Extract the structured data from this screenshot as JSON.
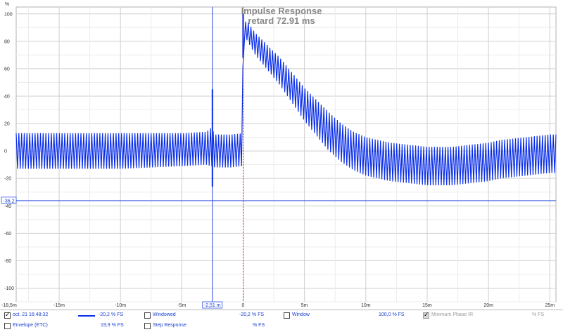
{
  "chart_data": {
    "type": "line",
    "title": "Impulse Response",
    "subtitle": "retard 72.91 ms",
    "ylabel": "%",
    "xlim": [
      -18.5,
      25.5
    ],
    "ylim": [
      -110,
      105
    ],
    "y_ticks": [
      100,
      80,
      60,
      40,
      20,
      0,
      -20,
      -40,
      -60,
      -80,
      -100
    ],
    "x_ticks": [
      -15,
      -10,
      -5,
      0,
      5,
      10,
      15,
      20,
      25
    ],
    "x_tick_labels": [
      "-15m",
      "-10m",
      "-5m",
      "0",
      "5m",
      "10m",
      "15m",
      "20m",
      "25m"
    ],
    "x_start_label": "-18,5m",
    "grid": true,
    "series": [
      {
        "name": "oct. 21 16:48:32",
        "color": "#0a2ee8",
        "envelope_x": [
          -18.5,
          -15,
          -10,
          -5,
          -3.0,
          -2.6,
          -2.3,
          -1.0,
          -0.05,
          0.0,
          0.3,
          1.0,
          2.0,
          3.0,
          4.0,
          5.0,
          6.0,
          7.0,
          8.0,
          9.0,
          10.0,
          11.0,
          12.0,
          13.0,
          14.0,
          15.0,
          16.0,
          17.0,
          18.0,
          19.0,
          20.0,
          21.0,
          22.0,
          23.0,
          24.0,
          25.0,
          25.5
        ],
        "envelope_mid": [
          0,
          0,
          0,
          1,
          2,
          3,
          0,
          0,
          1,
          85,
          88,
          78,
          68,
          58,
          46,
          34,
          24,
          14,
          6,
          0,
          -4,
          -6,
          -8,
          -9,
          -10,
          -11,
          -11,
          -11,
          -10,
          -9,
          -8,
          -6,
          -5,
          -4,
          -3,
          -2,
          -2
        ],
        "envelope_half": [
          13,
          13,
          13,
          12,
          12,
          14,
          12,
          12,
          12,
          8,
          7,
          8,
          9,
          10,
          11,
          12,
          13,
          14,
          14,
          14,
          14,
          14,
          14,
          14,
          14,
          14,
          14,
          14,
          14,
          14,
          14,
          14,
          14,
          14,
          14,
          14,
          14
        ],
        "oscillation_period_ms": 0.22,
        "spikes": [
          {
            "x": -2.5,
            "y_max": 45,
            "y_min": -26
          },
          {
            "x": 0.0,
            "y_max": 100,
            "y_min": 68
          }
        ]
      }
    ],
    "cursors": {
      "horizontal": {
        "y": -36.2,
        "label": "-36,2"
      },
      "vertical": {
        "x": -2.51,
        "label": "-2,51 m"
      },
      "peak_marker_x": 0
    }
  },
  "legend": {
    "row1": {
      "series_label": "oct. 21 16:48:32",
      "series_value": "-20,2 % FS",
      "windowed_label": "Windowed",
      "windowed_value": "-20,2 % FS",
      "window_label": "Window",
      "window_value": "100,0 % FS",
      "min_phase_label": "Minimum Phase IR",
      "min_phase_value": "% FS"
    },
    "row2": {
      "envelope_label": "Envelope (ETC)",
      "envelope_value": "19,9 % FS",
      "step_label": "Step Response",
      "step_value": "% FS"
    }
  }
}
